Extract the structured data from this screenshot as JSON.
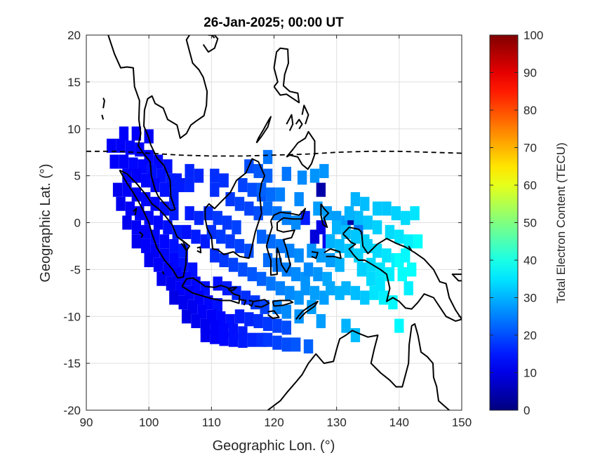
{
  "chart_data": {
    "type": "heatmap",
    "title": "26-Jan-2025; 00:00 UT",
    "xlabel": "Geographic Lon. (°)",
    "ylabel": "Geographic Lat. (°)",
    "xlim": [
      90,
      150
    ],
    "ylim": [
      -20,
      20
    ],
    "xticks": [
      "90",
      "100",
      "110",
      "120",
      "130",
      "140",
      "150"
    ],
    "yticks": [
      "20",
      "15",
      "10",
      "5",
      "0",
      "-5",
      "-10",
      "-15",
      "-20"
    ],
    "grid": true,
    "colorbar": {
      "label": "Total Electron Content (TECU)",
      "range": [
        0,
        100
      ],
      "ticks": [
        "0",
        "10",
        "20",
        "30",
        "40",
        "50",
        "60",
        "70",
        "80",
        "90",
        "100"
      ],
      "colormap": "jet",
      "placement": "right"
    },
    "cell_size_deg": 1.5,
    "cells": [
      [
        94,
        8.2,
        12
      ],
      [
        95.5,
        8.2,
        12
      ],
      [
        97,
        8,
        13
      ],
      [
        98.5,
        7.8,
        12
      ],
      [
        100,
        7,
        13
      ],
      [
        101.5,
        6.5,
        13
      ],
      [
        103,
        6,
        14
      ],
      [
        96,
        9.5,
        12
      ],
      [
        98,
        9.5,
        12
      ],
      [
        100,
        9.2,
        12
      ],
      [
        94.5,
        6.5,
        12
      ],
      [
        96,
        6.5,
        12
      ],
      [
        97.5,
        6.2,
        13
      ],
      [
        99,
        6,
        13
      ],
      [
        100.5,
        5.5,
        14
      ],
      [
        102,
        5,
        14
      ],
      [
        103.5,
        4.5,
        15
      ],
      [
        105,
        4,
        15
      ],
      [
        96.5,
        5,
        12
      ],
      [
        98,
        5,
        12
      ],
      [
        99.5,
        4.5,
        13
      ],
      [
        101,
        4,
        13
      ],
      [
        102.5,
        3.5,
        14
      ],
      [
        104,
        3,
        15
      ],
      [
        95,
        3.5,
        11
      ],
      [
        96.5,
        3.5,
        12
      ],
      [
        98,
        3,
        12
      ],
      [
        99.5,
        2.5,
        13
      ],
      [
        101,
        2,
        13
      ],
      [
        102.5,
        1.5,
        14
      ],
      [
        104,
        1,
        15
      ],
      [
        95.5,
        2,
        11
      ],
      [
        97,
        1.5,
        12
      ],
      [
        98.5,
        1,
        12
      ],
      [
        100,
        0.5,
        13
      ],
      [
        101.5,
        0,
        13
      ],
      [
        103,
        -0.5,
        14
      ],
      [
        104.5,
        -1,
        15
      ],
      [
        96.5,
        0,
        11
      ],
      [
        98,
        -0.5,
        12
      ],
      [
        99.5,
        -1,
        12
      ],
      [
        101,
        -1.5,
        13
      ],
      [
        102.5,
        -2,
        13
      ],
      [
        104,
        -2.5,
        14
      ],
      [
        105.5,
        -3,
        15
      ],
      [
        98,
        -2,
        11
      ],
      [
        99.5,
        -2.5,
        12
      ],
      [
        101,
        -3,
        12
      ],
      [
        102.5,
        -3.5,
        13
      ],
      [
        104,
        -4,
        13
      ],
      [
        105.5,
        -4.5,
        14
      ],
      [
        107,
        -5,
        14
      ],
      [
        100,
        -4,
        11
      ],
      [
        101.5,
        -4.5,
        12
      ],
      [
        103,
        -5,
        12
      ],
      [
        104.5,
        -5.5,
        12
      ],
      [
        106,
        -6,
        13
      ],
      [
        107.5,
        -6.5,
        13
      ],
      [
        109,
        -7,
        14
      ],
      [
        102,
        -6,
        11
      ],
      [
        103.5,
        -6.5,
        11
      ],
      [
        105,
        -7,
        12
      ],
      [
        106.5,
        -7.5,
        12
      ],
      [
        108,
        -8,
        12
      ],
      [
        109.5,
        -8.5,
        13
      ],
      [
        111,
        -8.8,
        14
      ],
      [
        104,
        -8,
        10
      ],
      [
        105.5,
        -8.5,
        11
      ],
      [
        107,
        -9,
        11
      ],
      [
        108.5,
        -9.5,
        12
      ],
      [
        110,
        -10,
        12
      ],
      [
        111.5,
        -10.2,
        13
      ],
      [
        113,
        -10.5,
        14
      ],
      [
        106,
        -10,
        10
      ],
      [
        107.5,
        -10.5,
        11
      ],
      [
        109,
        -11,
        11
      ],
      [
        110.5,
        -11.2,
        12
      ],
      [
        112,
        -11.5,
        13
      ],
      [
        113.5,
        -11.5,
        14
      ],
      [
        115,
        -11.8,
        15
      ],
      [
        109,
        -12,
        11
      ],
      [
        110.5,
        -12.2,
        12
      ],
      [
        112,
        -12.4,
        13
      ],
      [
        113.5,
        -12.5,
        14
      ],
      [
        115,
        -12.6,
        15
      ],
      [
        116.5,
        -12.5,
        16
      ],
      [
        118,
        -12.5,
        17
      ],
      [
        114.5,
        -10,
        15
      ],
      [
        116,
        -10.3,
        16
      ],
      [
        117.5,
        -10.5,
        17
      ],
      [
        119,
        -10.8,
        18
      ],
      [
        120.5,
        -11,
        19
      ],
      [
        122,
        -11.2,
        20
      ],
      [
        119,
        -12.5,
        18
      ],
      [
        120.5,
        -12.8,
        19
      ],
      [
        122,
        -13,
        20
      ],
      [
        123.5,
        -13,
        21
      ],
      [
        125.5,
        -13.2,
        22
      ],
      [
        111,
        -6.5,
        14
      ],
      [
        112.5,
        -7,
        15
      ],
      [
        114,
        -7.5,
        16
      ],
      [
        115.5,
        -8,
        17
      ],
      [
        117,
        -8.5,
        18
      ],
      [
        118.5,
        -9,
        19
      ],
      [
        106,
        -1,
        14
      ],
      [
        107.5,
        -1.5,
        15
      ],
      [
        109,
        -2,
        15
      ],
      [
        106.5,
        1,
        15
      ],
      [
        108,
        0.5,
        16
      ],
      [
        104.5,
        4.5,
        15
      ],
      [
        104,
        2.5,
        15
      ],
      [
        106.5,
        5.5,
        16
      ],
      [
        108,
        5,
        16
      ],
      [
        106.5,
        4,
        16
      ],
      [
        110.5,
        5,
        17
      ],
      [
        112,
        4.5,
        17
      ],
      [
        110.5,
        3.5,
        17
      ],
      [
        109.5,
        1,
        17
      ],
      [
        111,
        0.5,
        18
      ],
      [
        112.5,
        0,
        18
      ],
      [
        114,
        -0.5,
        19
      ],
      [
        110,
        -1,
        17
      ],
      [
        111.5,
        -1.5,
        18
      ],
      [
        113,
        -2,
        18
      ],
      [
        114.5,
        -2.5,
        19
      ],
      [
        116,
        -3,
        20
      ],
      [
        110.5,
        -3.5,
        17
      ],
      [
        112,
        -4,
        18
      ],
      [
        113.5,
        -4.5,
        19
      ],
      [
        115,
        -5,
        20
      ],
      [
        116.5,
        -5.5,
        21
      ],
      [
        118,
        -6,
        22
      ],
      [
        113,
        2.5,
        18
      ],
      [
        114.5,
        2,
        19
      ],
      [
        116,
        1.5,
        19
      ],
      [
        117.5,
        1,
        20
      ],
      [
        115,
        4,
        19
      ],
      [
        116.5,
        3.5,
        20
      ],
      [
        118,
        3,
        21
      ],
      [
        116,
        6,
        20
      ],
      [
        117.5,
        5.5,
        21
      ],
      [
        119,
        5,
        22
      ],
      [
        119,
        7,
        24
      ],
      [
        118,
        3.5,
        22
      ],
      [
        119.5,
        3,
        23
      ],
      [
        119,
        1.5,
        23
      ],
      [
        120.5,
        1,
        24
      ],
      [
        122,
        0.5,
        25
      ],
      [
        123.5,
        0,
        26
      ],
      [
        118,
        -1.5,
        22
      ],
      [
        119.5,
        -2,
        23
      ],
      [
        121,
        -2.5,
        24
      ],
      [
        122.5,
        -3,
        25
      ],
      [
        124,
        -3.5,
        26
      ],
      [
        119,
        -4,
        23
      ],
      [
        120.5,
        -4.5,
        24
      ],
      [
        122,
        -5,
        25
      ],
      [
        123.5,
        -5.5,
        26
      ],
      [
        125,
        -6,
        27
      ],
      [
        119.5,
        -6.5,
        24
      ],
      [
        121,
        -7,
        25
      ],
      [
        122.5,
        -7.5,
        26
      ],
      [
        124,
        -8,
        27
      ],
      [
        120.5,
        -9,
        25
      ],
      [
        122,
        -9.5,
        26
      ],
      [
        124,
        -10,
        27
      ],
      [
        126,
        -9,
        28
      ],
      [
        127.5,
        -10.5,
        28
      ],
      [
        122,
        5.2,
        24
      ],
      [
        124.5,
        4.8,
        26
      ],
      [
        126.5,
        5,
        27
      ],
      [
        128,
        5.5,
        27
      ],
      [
        121,
        3,
        25
      ],
      [
        124,
        2.5,
        26
      ],
      [
        127,
        1.5,
        28
      ],
      [
        128.5,
        1,
        28
      ],
      [
        130,
        0.5,
        28
      ],
      [
        131.5,
        0,
        28
      ],
      [
        125,
        0.5,
        15
      ],
      [
        127.5,
        -0.5,
        10
      ],
      [
        126.5,
        -1.5,
        9
      ],
      [
        128.5,
        -2,
        11
      ],
      [
        127.5,
        3.5,
        4
      ],
      [
        132.5,
        0.5,
        4
      ],
      [
        133.5,
        -0.5,
        24
      ],
      [
        126,
        -3,
        27
      ],
      [
        127.5,
        -3.5,
        28
      ],
      [
        129,
        -4,
        28
      ],
      [
        130.5,
        -4.5,
        30
      ],
      [
        125.5,
        -5,
        26
      ],
      [
        127,
        -5.5,
        27
      ],
      [
        128.5,
        -6,
        29
      ],
      [
        125,
        -7,
        27
      ],
      [
        126.5,
        -7.5,
        28
      ],
      [
        128,
        -8,
        28
      ],
      [
        129,
        -2,
        30
      ],
      [
        130.5,
        -2.5,
        31
      ],
      [
        132,
        -3,
        32
      ],
      [
        133.5,
        -3.5,
        33
      ],
      [
        130,
        -0.5,
        30
      ],
      [
        131.5,
        -1,
        31
      ],
      [
        133,
        -1.5,
        32
      ],
      [
        134.5,
        -2,
        33
      ],
      [
        132,
        1,
        30
      ],
      [
        133.5,
        0.5,
        31
      ],
      [
        135,
        0,
        32
      ],
      [
        136.5,
        -0.5,
        33
      ],
      [
        133,
        2.5,
        30
      ],
      [
        134.5,
        2,
        31
      ],
      [
        136.5,
        1.5,
        32
      ],
      [
        135,
        -2.5,
        33
      ],
      [
        136.5,
        -3,
        34
      ],
      [
        138,
        -3.5,
        35
      ],
      [
        139.5,
        -4,
        36
      ],
      [
        135.5,
        -4.5,
        34
      ],
      [
        137,
        -5,
        35
      ],
      [
        138.5,
        -5.5,
        36
      ],
      [
        140,
        -4,
        38
      ],
      [
        134,
        -5,
        33
      ],
      [
        135.5,
        -6,
        34
      ],
      [
        137,
        -6.5,
        35
      ],
      [
        136,
        -7.5,
        35
      ],
      [
        137.5,
        -8,
        36
      ],
      [
        139,
        -8.5,
        37
      ],
      [
        138,
        1.5,
        32
      ],
      [
        139.5,
        1,
        33
      ],
      [
        141,
        0.5,
        34
      ],
      [
        142.5,
        1,
        35
      ],
      [
        138.5,
        -1,
        34
      ],
      [
        140,
        -1.5,
        35
      ],
      [
        141.5,
        -2,
        36
      ],
      [
        141,
        -3.5,
        37
      ],
      [
        143,
        -2,
        38
      ],
      [
        140.5,
        -5.5,
        38
      ],
      [
        142,
        -5,
        38
      ],
      [
        131.5,
        -7,
        30
      ],
      [
        133,
        -7.5,
        31
      ],
      [
        134.5,
        -8,
        32
      ],
      [
        129,
        -7,
        29
      ],
      [
        130.5,
        -7.5,
        30
      ],
      [
        141.5,
        -7,
        36
      ],
      [
        140,
        -11,
        37
      ],
      [
        131.5,
        -11,
        30
      ],
      [
        133,
        -12,
        31
      ]
    ],
    "annotation": "dashed line: magnetic equator"
  },
  "colors": {
    "coast": "#000000",
    "grid": "#dfdfdf",
    "axis": "#262626"
  }
}
